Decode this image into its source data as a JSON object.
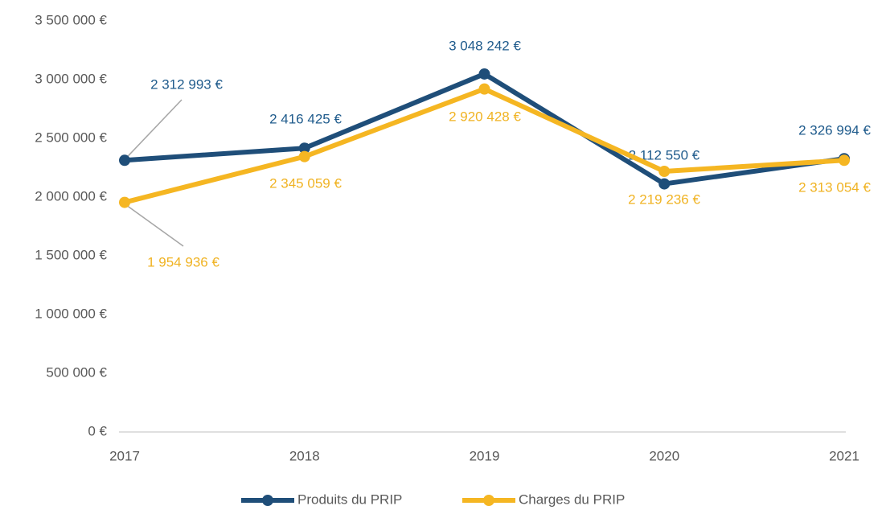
{
  "chart_data": {
    "type": "line",
    "categories": [
      "2017",
      "2018",
      "2019",
      "2020",
      "2021"
    ],
    "series": [
      {
        "name": "Produits du PRIP",
        "color": "#1f4e79",
        "values": [
          2312993,
          2416425,
          3048242,
          2112550,
          2326994
        ],
        "value_labels": [
          "2 312 993 €",
          "2 416 425 €",
          "3 048 242 €",
          "2 112 550 €",
          "2 326 994 €"
        ]
      },
      {
        "name": "Charges du PRIP",
        "color": "#f5b622",
        "values": [
          1954936,
          2345059,
          2920428,
          2219236,
          2313054
        ],
        "value_labels": [
          "1 954 936 €",
          "2 345 059 €",
          "2 920 428 €",
          "2 219 236 €",
          "2 313 054 €"
        ]
      }
    ],
    "ylim": [
      0,
      3500000
    ],
    "yticks": [
      {
        "value": 0,
        "label": "0 €"
      },
      {
        "value": 500000,
        "label": "500 000 €"
      },
      {
        "value": 1000000,
        "label": "1 000 000 €"
      },
      {
        "value": 1500000,
        "label": "1 500 000 €"
      },
      {
        "value": 2000000,
        "label": "2 000 000 €"
      },
      {
        "value": 2500000,
        "label": "2 500 000 €"
      },
      {
        "value": 3000000,
        "label": "3 000 000 €"
      },
      {
        "value": 3500000,
        "label": "3 500 000 €"
      }
    ],
    "grid": false,
    "legend": "bottom"
  }
}
